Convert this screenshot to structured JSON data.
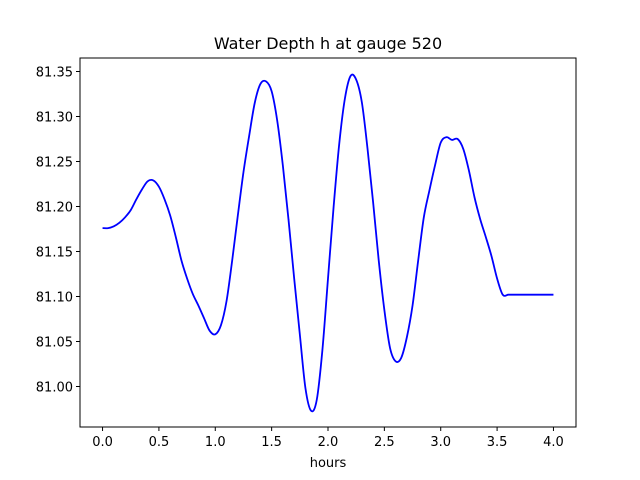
{
  "chart_data": {
    "type": "line",
    "title": "Water Depth h at gauge 520",
    "xlabel": "hours",
    "ylabel": "",
    "xlim": [
      -0.2,
      4.2
    ],
    "ylim": [
      80.955,
      81.365
    ],
    "xticks": [
      0.0,
      0.5,
      1.0,
      1.5,
      2.0,
      2.5,
      3.0,
      3.5,
      4.0
    ],
    "xtick_labels": [
      "0.0",
      "0.5",
      "1.0",
      "1.5",
      "2.0",
      "2.5",
      "3.0",
      "3.5",
      "4.0"
    ],
    "yticks": [
      81.0,
      81.05,
      81.1,
      81.15,
      81.2,
      81.25,
      81.3,
      81.35
    ],
    "ytick_labels": [
      "81.00",
      "81.05",
      "81.10",
      "81.15",
      "81.20",
      "81.25",
      "81.30",
      "81.35"
    ],
    "grid": false,
    "series": [
      {
        "color": "#0000ff",
        "x": [
          0.0,
          0.05,
          0.1,
          0.15,
          0.2,
          0.25,
          0.3,
          0.35,
          0.4,
          0.45,
          0.5,
          0.55,
          0.6,
          0.65,
          0.7,
          0.75,
          0.8,
          0.85,
          0.9,
          0.95,
          1.0,
          1.05,
          1.1,
          1.15,
          1.2,
          1.25,
          1.3,
          1.35,
          1.4,
          1.45,
          1.5,
          1.55,
          1.6,
          1.65,
          1.7,
          1.75,
          1.8,
          1.85,
          1.9,
          1.95,
          2.0,
          2.05,
          2.1,
          2.15,
          2.2,
          2.25,
          2.3,
          2.35,
          2.4,
          2.45,
          2.5,
          2.55,
          2.6,
          2.65,
          2.7,
          2.75,
          2.8,
          2.85,
          2.9,
          2.95,
          3.0,
          3.05,
          3.1,
          3.15,
          3.2,
          3.25,
          3.3,
          3.35,
          3.4,
          3.45,
          3.5,
          3.55,
          3.6,
          3.65,
          3.7,
          3.75,
          3.8,
          3.85,
          3.9,
          3.95,
          4.0
        ],
        "y": [
          81.176,
          81.176,
          81.178,
          81.182,
          81.188,
          81.196,
          81.208,
          81.219,
          81.228,
          81.229,
          81.222,
          81.208,
          81.19,
          81.166,
          81.14,
          81.12,
          81.103,
          81.09,
          81.076,
          81.062,
          81.058,
          81.068,
          81.095,
          81.14,
          81.19,
          81.238,
          81.278,
          81.315,
          81.336,
          81.339,
          81.328,
          81.295,
          81.245,
          81.185,
          81.12,
          81.058,
          80.998,
          80.973,
          80.985,
          81.04,
          81.12,
          81.2,
          81.27,
          81.32,
          81.345,
          81.341,
          81.316,
          81.265,
          81.205,
          81.14,
          81.085,
          81.043,
          81.028,
          81.032,
          81.055,
          81.09,
          81.14,
          81.188,
          81.218,
          81.246,
          81.271,
          81.277,
          81.274,
          81.275,
          81.264,
          81.24,
          81.21,
          81.186,
          81.166,
          81.145,
          81.12,
          81.102,
          81.102,
          81.102,
          81.102,
          81.102,
          81.102,
          81.102,
          81.102,
          81.102,
          81.102
        ]
      }
    ]
  }
}
